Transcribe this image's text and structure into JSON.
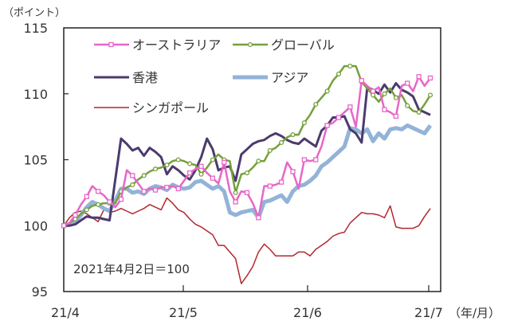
{
  "chart_data": {
    "type": "line",
    "title": "",
    "ylabel": "（ポイント）",
    "xlabel": "（年/月）",
    "ylim": [
      95,
      115
    ],
    "yticks": [
      95,
      100,
      105,
      110,
      115
    ],
    "xtick_labels": [
      "21/4",
      "21/5",
      "21/6",
      "21/7"
    ],
    "xtick_index": [
      0,
      21,
      43,
      64
    ],
    "annotation": "2021年4月2日＝100",
    "legend_position": "upper-left-inside",
    "grid": false,
    "n_points": 65,
    "series": [
      {
        "name": "オーストラリア",
        "color": "#E866C8",
        "width": 2.5,
        "marker": "square",
        "values": [
          100,
          100.2,
          100.8,
          101.6,
          102.2,
          103.0,
          102.6,
          102.3,
          101.8,
          101.4,
          102.0,
          104.2,
          103.8,
          103.2,
          102.6,
          102.8,
          102.7,
          102.9,
          102.9,
          103.0,
          102.8,
          103.4,
          104.0,
          104.3,
          104.5,
          104.0,
          103.6,
          103.2,
          104.8,
          102.6,
          101.8,
          102.6,
          102.5,
          101.7,
          100.6,
          103.0,
          103.0,
          103.1,
          103.3,
          104.8,
          104.1,
          102.8,
          105.0,
          104.9,
          105.0,
          106.0,
          107.6,
          107.8,
          108.2,
          108.6,
          109.0,
          107.5,
          111.0,
          110.6,
          110.2,
          110.5,
          108.8,
          108.6,
          108.3,
          110.6,
          110.8,
          110.2,
          111.3,
          110.6,
          111.2
        ]
      },
      {
        "name": "グローバル",
        "color": "#76A03C",
        "width": 2.5,
        "marker": "circle",
        "values": [
          100,
          100.2,
          100.5,
          100.9,
          101.2,
          101.5,
          101.6,
          101.7,
          101.7,
          101.7,
          102.6,
          102.9,
          103.1,
          103.5,
          103.8,
          104.1,
          104.3,
          104.4,
          104.6,
          104.9,
          105.0,
          104.9,
          104.7,
          104.6,
          103.9,
          104.4,
          105.0,
          105.4,
          105.0,
          104.9,
          102.5,
          103.9,
          104.0,
          104.4,
          104.9,
          104.9,
          105.7,
          105.9,
          106.3,
          106.7,
          106.9,
          106.9,
          107.8,
          108.4,
          109.2,
          109.7,
          110.2,
          111.0,
          111.5,
          112.1,
          112.1,
          112.1,
          110.9,
          110.4,
          109.9,
          109.4,
          110.0,
          110.4,
          109.7,
          109.9,
          109.1,
          108.7,
          108.6,
          109.2,
          109.9
        ]
      },
      {
        "name": "香港",
        "color": "#4B3B6E",
        "width": 3,
        "marker": "none",
        "values": [
          100,
          100.0,
          100.1,
          100.4,
          100.7,
          100.6,
          100.6,
          100.5,
          100.4,
          103.5,
          106.6,
          106.2,
          105.7,
          105.9,
          105.3,
          105.9,
          105.6,
          105.2,
          103.9,
          104.5,
          104.2,
          103.8,
          103.5,
          104.2,
          105.2,
          106.6,
          105.8,
          104.2,
          104.4,
          104.5,
          103.4,
          105.4,
          105.8,
          106.2,
          106.4,
          106.5,
          106.8,
          107.0,
          106.8,
          106.5,
          106.3,
          106.2,
          106.6,
          106.3,
          106.0,
          107.2,
          107.6,
          108.2,
          108.2,
          108.3,
          107.3,
          107.0,
          106.3,
          110.5,
          110.3,
          110.0,
          110.7,
          110.1,
          110.8,
          110.3,
          110.1,
          109.8,
          108.8,
          108.6,
          108.4
        ]
      },
      {
        "name": "アジア",
        "color": "#93B3D8",
        "width": 5,
        "marker": "none",
        "values": [
          100,
          100.1,
          100.3,
          100.8,
          101.4,
          101.8,
          101.6,
          101.3,
          101.1,
          101.9,
          102.8,
          102.8,
          102.5,
          102.6,
          102.4,
          102.8,
          103.0,
          102.9,
          102.7,
          103.1,
          102.9,
          102.8,
          102.9,
          103.3,
          103.4,
          103.1,
          102.8,
          103.0,
          102.6,
          101.0,
          100.8,
          101.0,
          101.1,
          101.2,
          100.6,
          101.8,
          101.9,
          102.1,
          102.3,
          101.8,
          102.6,
          103.0,
          103.1,
          103.4,
          103.8,
          104.5,
          104.8,
          105.2,
          105.6,
          106.0,
          107.4,
          107.3,
          107.0,
          107.3,
          106.4,
          107.0,
          106.6,
          107.3,
          107.4,
          107.3,
          107.6,
          107.4,
          107.2,
          107.0,
          107.6
        ]
      },
      {
        "name": "シンガポール",
        "color": "#B2272E",
        "width": 1.5,
        "marker": "none",
        "values": [
          100,
          100.6,
          101.0,
          101.1,
          100.9,
          100.6,
          100.3,
          101.2,
          101.0,
          101.1,
          101.3,
          101.1,
          100.9,
          101.1,
          101.3,
          101.6,
          101.4,
          101.2,
          102.1,
          101.7,
          101.2,
          101.0,
          100.5,
          100.1,
          99.9,
          99.6,
          99.3,
          98.5,
          98.5,
          98.0,
          97.5,
          95.6,
          96.2,
          96.9,
          98.0,
          98.6,
          98.2,
          97.7,
          97.7,
          97.7,
          97.7,
          98.0,
          98.0,
          97.7,
          98.2,
          98.5,
          98.8,
          99.2,
          99.4,
          99.5,
          100.2,
          100.6,
          101.0,
          100.9,
          100.9,
          100.8,
          100.6,
          101.5,
          99.9,
          99.8,
          99.8,
          99.8,
          100.0,
          100.7,
          101.3
        ]
      }
    ]
  }
}
